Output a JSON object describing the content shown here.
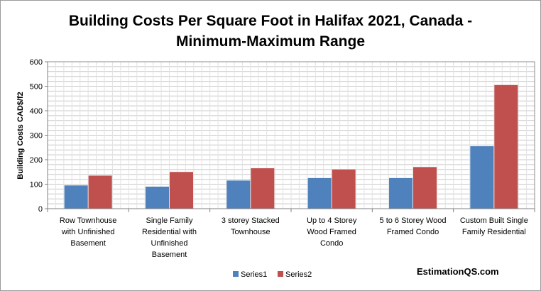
{
  "chart_data": {
    "type": "bar",
    "title_lines": [
      "Building Costs Per Square Foot in Halifax 2021, Canada -",
      "Minimum-Maximum Range"
    ],
    "ylabel": "Building Costs  CAD$/f2",
    "xlabel": "",
    "ylim": [
      0,
      600
    ],
    "yticks": [
      0,
      100,
      200,
      300,
      400,
      500,
      600
    ],
    "grid": true,
    "legend_position": "bottom",
    "categories": [
      [
        "Row Townhouse",
        "with Unfinished",
        "Basement"
      ],
      [
        "Single Family",
        "Residential with",
        "Unfinished",
        "Basement"
      ],
      [
        "3 storey Stacked",
        "Townhouse"
      ],
      [
        "Up to 4 Storey",
        "Wood Framed",
        "Condo"
      ],
      [
        "5 to 6 Storey Wood",
        "Framed Condo"
      ],
      [
        "Custom Built Single",
        "Family Residential"
      ]
    ],
    "series": [
      {
        "name": "Series1",
        "color": "#4f81bd",
        "values": [
          95,
          90,
          115,
          125,
          125,
          255
        ]
      },
      {
        "name": "Series2",
        "color": "#c0504d",
        "values": [
          135,
          150,
          165,
          160,
          170,
          505
        ]
      }
    ]
  },
  "watermark": "EstimationQS.com"
}
